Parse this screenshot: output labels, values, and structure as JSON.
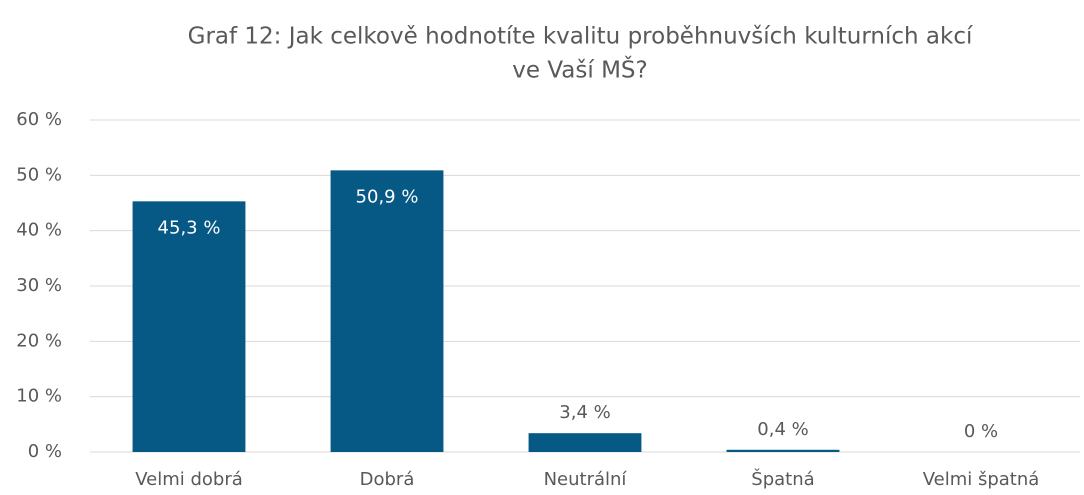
{
  "chart_data": {
    "type": "bar",
    "title": [
      "Graf 12: Jak celkově hodnotíte kvalitu proběhnuvších kulturních akcí",
      "ve Vaší MŠ?"
    ],
    "categories": [
      "Velmi dobrá",
      "Dobrá",
      "Neutrální",
      "Špatná",
      "Velmi špatná"
    ],
    "values": [
      45.3,
      50.9,
      3.4,
      0.4,
      0
    ],
    "value_labels": [
      "45,3 %",
      "50,9 %",
      "3,4 %",
      "0,4 %",
      "0 %"
    ],
    "color": "#075985",
    "ylim": [
      0,
      60
    ],
    "yticks": [
      {
        "value": 0,
        "label": "0 %"
      },
      {
        "value": 10,
        "label": "10 %"
      },
      {
        "value": 20,
        "label": "20 %"
      },
      {
        "value": 30,
        "label": "30 %"
      },
      {
        "value": 40,
        "label": "40 %"
      },
      {
        "value": 50,
        "label": "50 %"
      },
      {
        "value": 60,
        "label": "60 %"
      }
    ],
    "grid": true
  }
}
